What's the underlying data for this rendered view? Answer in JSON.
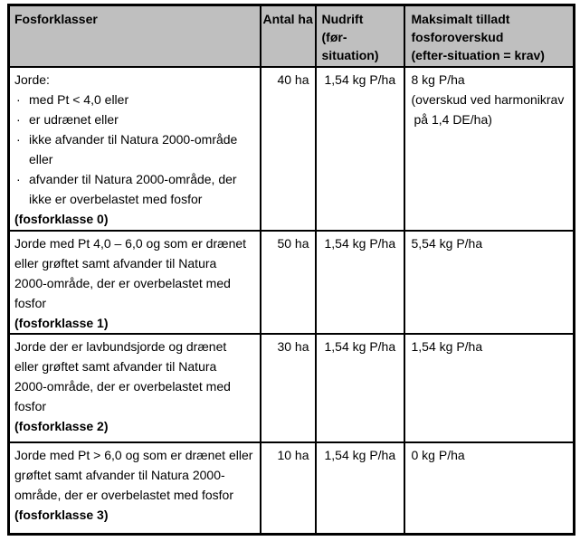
{
  "glyphs": {
    "bullet": "·"
  },
  "colors": {
    "header_bg": "#bfbfbf",
    "border": "#000000",
    "text": "#000000",
    "page_bg": "#ffffff"
  },
  "table": {
    "header": {
      "fosforklasser": "Fosforklasser",
      "antal_ha": "Antal ha",
      "nudrift_lines": [
        "Nudrift",
        "(før-",
        "situation)"
      ],
      "maks_lines": [
        "Maksimalt tilladt",
        "fosforoverskud",
        "(efter-situation = krav)"
      ]
    },
    "rows": [
      {
        "intro": "Jorde:",
        "bullets": [
          {
            "lines": [
              "med Pt < 4,0 eller"
            ]
          },
          {
            "lines": [
              "er udrænet eller"
            ]
          },
          {
            "lines": [
              "ikke afvander til Natura 2000-område",
              "eller"
            ]
          },
          {
            "lines": [
              "afvander til Natura 2000-område, der",
              "ikke er overbelastet med fosfor"
            ]
          }
        ],
        "class_label": "(fosforklasse 0)",
        "antal_ha": "40 ha",
        "nudrift": "1,54 kg P/ha",
        "maks_lines": [
          "8 kg P/ha",
          "(overskud ved harmonikrav",
          "på 1,4 DE/ha)"
        ]
      },
      {
        "desc_lines": [
          "Jorde med Pt 4,0 – 6,0 og som er drænet",
          "eller grøftet samt afvander til Natura",
          "2000-område, der er overbelastet med",
          "fosfor"
        ],
        "class_label": "(fosforklasse 1)",
        "antal_ha": "50 ha",
        "nudrift": "1,54 kg P/ha",
        "maks_lines": [
          "5,54 kg P/ha"
        ]
      },
      {
        "desc_lines": [
          "Jorde der er lavbundsjorde og drænet",
          "eller grøftet samt afvander til Natura",
          "2000-område, der er overbelastet med",
          "fosfor"
        ],
        "class_label": "(fosforklasse 2)",
        "antal_ha": "30 ha",
        "nudrift": "1,54 kg P/ha",
        "maks_lines": [
          "1,54 kg P/ha"
        ]
      },
      {
        "desc_lines": [
          "Jorde med Pt > 6,0 og som er drænet eller",
          "grøftet samt afvander til Natura 2000-",
          "område, der er overbelastet med fosfor"
        ],
        "class_label": "(fosforklasse 3)",
        "antal_ha": "10 ha",
        "nudrift": "1,54 kg P/ha",
        "maks_lines": [
          "0 kg P/ha"
        ]
      }
    ]
  }
}
